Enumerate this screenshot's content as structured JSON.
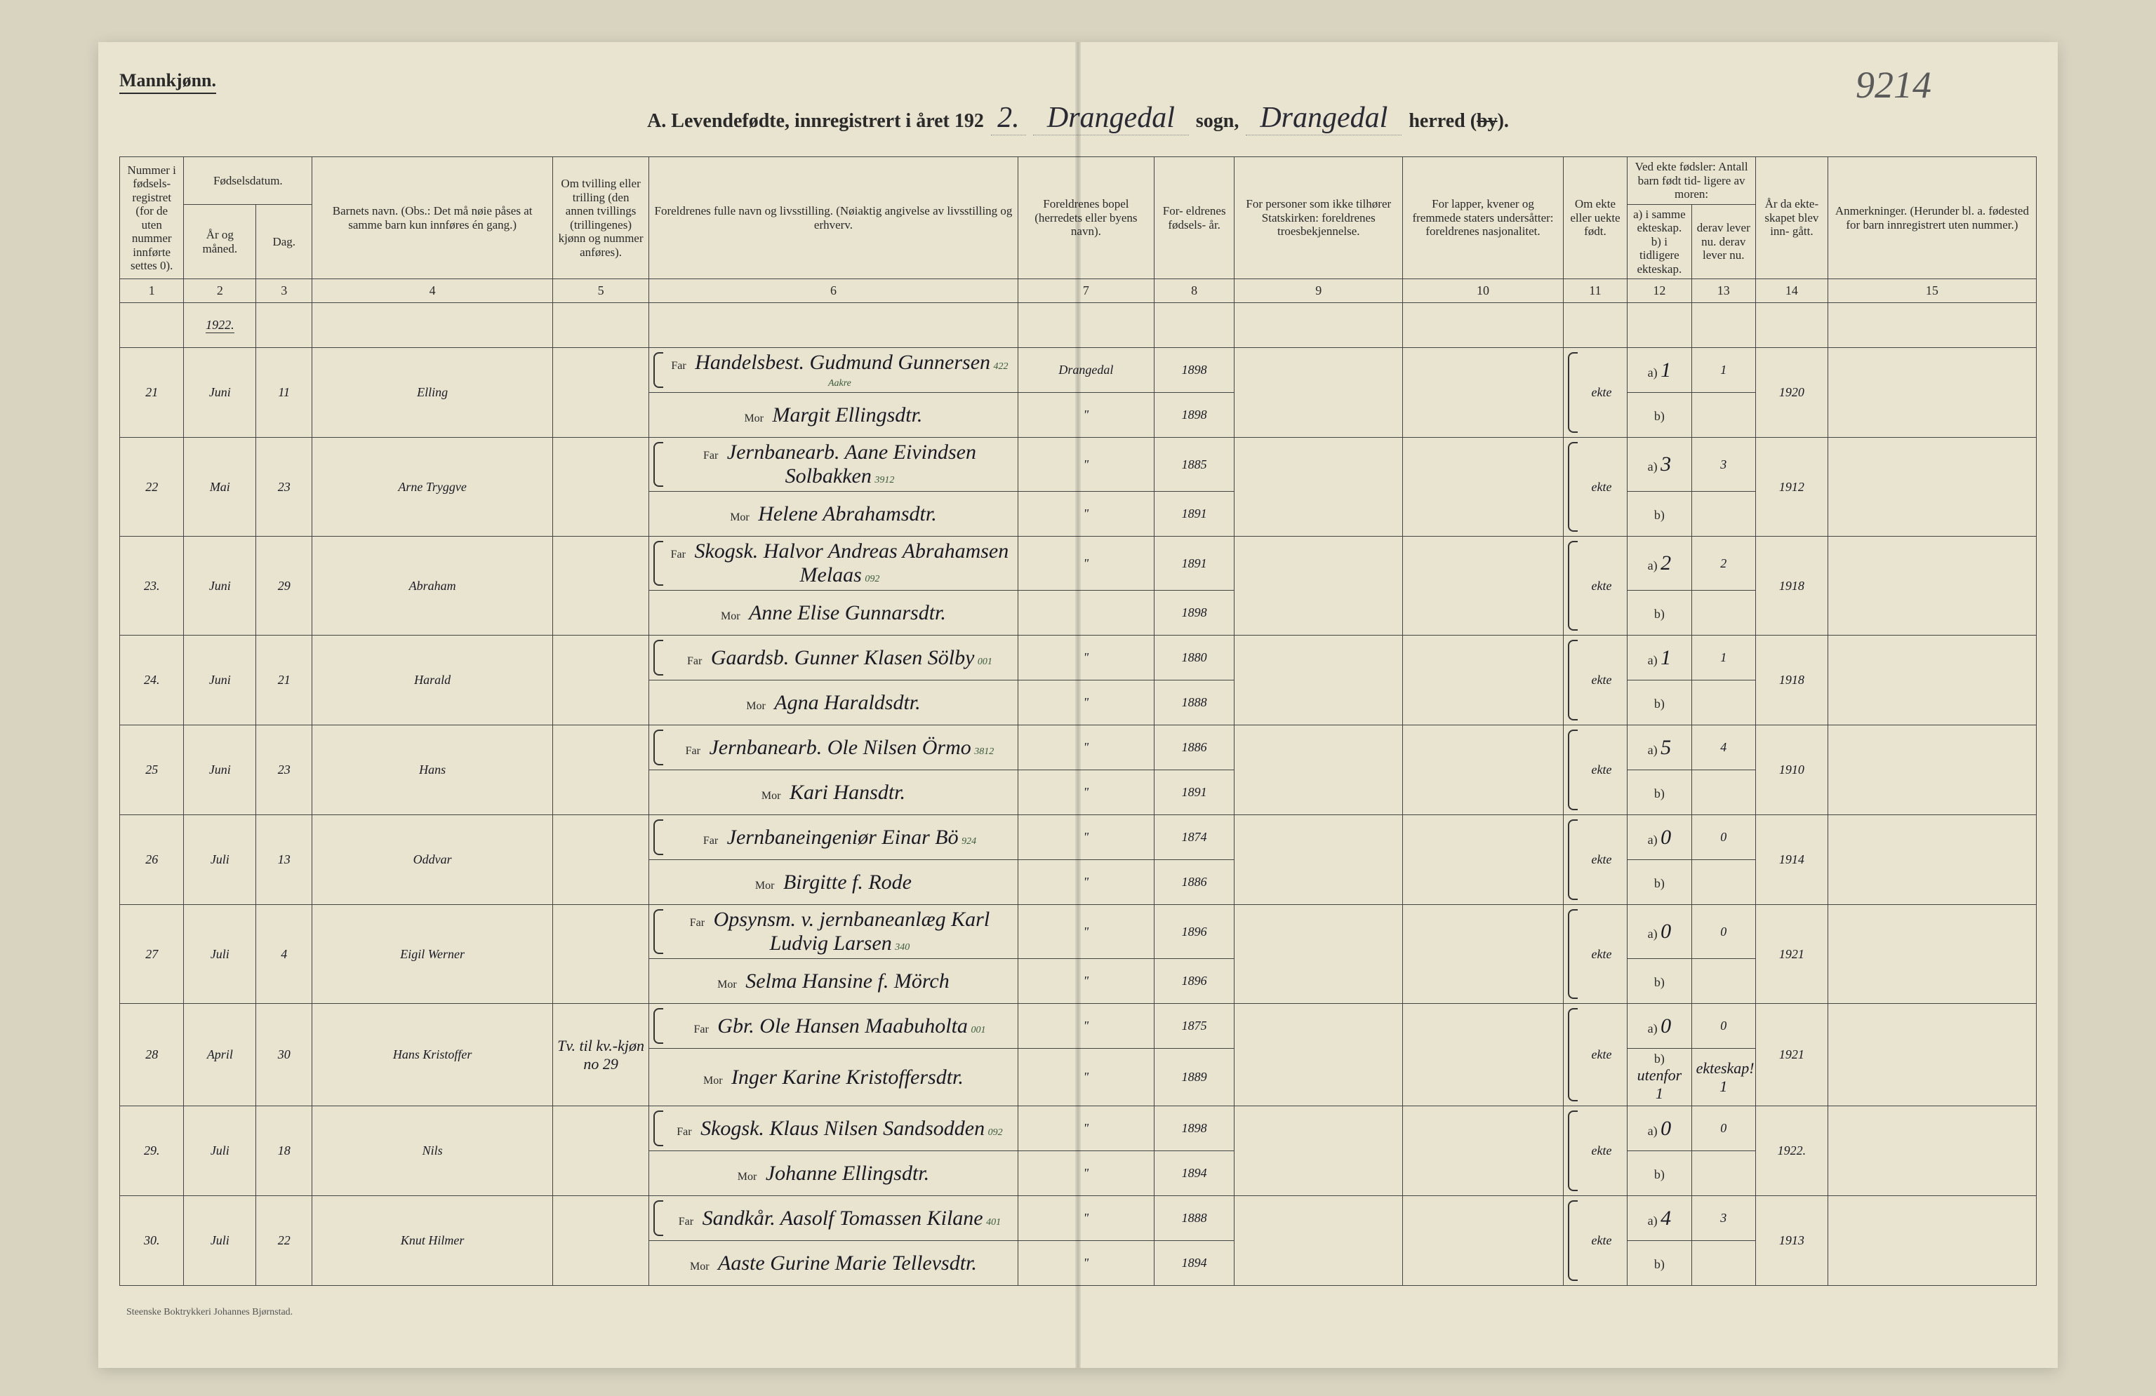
{
  "header": {
    "gender": "Mannkjønn.",
    "page_number_hw": "9214",
    "title_prefix": "A.  Levendefødte, innregistrert i året 192",
    "year_suffix_hw": "2.",
    "sogn_hw": "Drangedal",
    "sogn_label": "sogn,",
    "herred_hw": "Drangedal",
    "herred_label": "herred (",
    "by_struck": "by",
    "herred_close": ")."
  },
  "columns": {
    "c1": "Nummer i fødsels- registret (for de uten nummer innførte settes 0).",
    "c2a": "Fødselsdatum.",
    "c2b": "År og måned.",
    "c3": "Dag.",
    "c4": "Barnets navn.\n(Obs.: Det må nøie påses at samme barn kun innføres én gang.)",
    "c5": "Om tvilling eller trilling (den annen tvillings (trillingenes) kjønn og nummer anføres).",
    "c6": "Foreldrenes fulle navn og livsstilling.\n(Nøiaktig angivelse av livsstilling og erhverv.",
    "c7": "Foreldrenes bopel (herredets eller byens navn).",
    "c8": "For- eldrenes fødsels- år.",
    "c9": "For personer som ikke tilhører Statskirken: foreldrenes troesbekjennelse.",
    "c10": "For lapper, kvener og fremmede staters undersåtter: foreldrenes nasjonalitet.",
    "c11": "Om ekte eller uekte født.",
    "c12": "Ved ekte fødsler: Antall barn født tid- ligere av moren:",
    "c12a": "a) i samme ekteskap.",
    "c12b": "b) i tidligere ekteskap.",
    "c13": "derav lever nu.\nderav lever nu.",
    "c14": "År da ekte- skapet blev inn- gått.",
    "c15": "Anmerkninger.\n(Herunder bl. a. fødested for barn innregistrert uten nummer.)",
    "nums": [
      "1",
      "2",
      "3",
      "4",
      "5",
      "6",
      "7",
      "8",
      "9",
      "10",
      "11",
      "12",
      "13",
      "14",
      "15"
    ]
  },
  "year_label": "1922.",
  "rows": [
    {
      "num": "21",
      "month": "Juni",
      "day": "11",
      "child": "Elling",
      "twin": "",
      "far_note": "422  Aakre",
      "far": "Handelsbest. Gudmund Gunnersen",
      "mor": "Margit Ellingsdtr.",
      "bopel": "Drangedal",
      "bopel2": "\"",
      "fy_far": "1898",
      "fy_mor": "1898",
      "ekte": "ekte",
      "a": "1",
      "b": "",
      "lev_a": "1",
      "lev_b": "",
      "marr": "1920",
      "anm": ""
    },
    {
      "num": "22",
      "month": "Mai",
      "day": "23",
      "child": "Arne Tryggve",
      "twin": "",
      "far_note": "3912",
      "far": "Jernbanearb. Aane Eivindsen Solbakken",
      "mor": "Helene Abrahamsdtr.",
      "bopel": "\"",
      "bopel2": "\"",
      "fy_far": "1885",
      "fy_mor": "1891",
      "ekte": "ekte",
      "a": "3",
      "b": "",
      "lev_a": "3",
      "lev_b": "",
      "marr": "1912",
      "anm": ""
    },
    {
      "num": "23.",
      "month": "Juni",
      "day": "29",
      "child": "Abraham",
      "twin": "",
      "far_note": "092",
      "far": "Skogsk. Halvor Andreas Abrahamsen  Melaas",
      "mor": "Anne Elise Gunnarsdtr.",
      "bopel": "\"",
      "bopel2": "",
      "fy_far": "1891",
      "fy_mor": "1898",
      "ekte": "ekte",
      "a": "2",
      "b": "",
      "lev_a": "2",
      "lev_b": "",
      "marr": "1918",
      "anm": ""
    },
    {
      "num": "24.",
      "month": "Juni",
      "day": "21",
      "child": "Harald",
      "twin": "",
      "far_note": "001",
      "far": "Gaardsb. Gunner Klasen Sölby",
      "mor": "Agna Haraldsdtr.",
      "bopel": "\"",
      "bopel2": "\"",
      "fy_far": "1880",
      "fy_mor": "1888",
      "ekte": "ekte",
      "a": "1",
      "b": "",
      "lev_a": "1",
      "lev_b": "",
      "marr": "1918",
      "anm": ""
    },
    {
      "num": "25",
      "month": "Juni",
      "day": "23",
      "child": "Hans",
      "twin": "",
      "far_note": "3812",
      "far": "Jernbanearb. Ole Nilsen Örmo",
      "mor": "Kari Hansdtr.",
      "bopel": "\"",
      "bopel2": "\"",
      "fy_far": "1886",
      "fy_mor": "1891",
      "ekte": "ekte",
      "a": "5",
      "b": "",
      "lev_a": "4",
      "lev_b": "",
      "marr": "1910",
      "anm": ""
    },
    {
      "num": "26",
      "month": "Juli",
      "day": "13",
      "child": "Oddvar",
      "twin": "",
      "far_note": "924",
      "far": "Jernbaneingeniør Einar Bö",
      "mor": "Birgitte f. Rode",
      "bopel": "\"",
      "bopel2": "\"",
      "fy_far": "1874",
      "fy_mor": "1886",
      "ekte": "ekte",
      "a": "0",
      "b": "",
      "lev_a": "0",
      "lev_b": "",
      "marr": "1914",
      "anm": ""
    },
    {
      "num": "27",
      "month": "Juli",
      "day": "4",
      "child": "Eigil Werner",
      "twin": "",
      "far_note": "340",
      "far": "Opsynsm. v. jernbaneanlæg Karl Ludvig Larsen",
      "mor": "Selma Hansine f. Mörch",
      "bopel": "\"",
      "bopel2": "\"",
      "fy_far": "1896",
      "fy_mor": "1896",
      "ekte": "ekte",
      "a": "0",
      "b": "",
      "lev_a": "0",
      "lev_b": "",
      "marr": "1921",
      "anm": ""
    },
    {
      "num": "28",
      "month": "April",
      "day": "30",
      "child": "Hans Kristoffer",
      "twin": "Tv. til kv.-kjøn no 29",
      "far_note": "001",
      "far": "Gbr. Ole Hansen Maabuholta",
      "mor": "Inger Karine Kristoffersdtr.",
      "bopel": "\"",
      "bopel2": "\"",
      "fy_far": "1875",
      "fy_mor": "1889",
      "ekte": "ekte",
      "a": "0",
      "b": "utenfor 1",
      "lev_a": "0",
      "lev_b": "ekteskap! 1",
      "marr": "1921",
      "anm": ""
    },
    {
      "num": "29.",
      "month": "Juli",
      "day": "18",
      "child": "Nils",
      "twin": "",
      "far_note": "092",
      "far": "Skogsk. Klaus Nilsen Sandsodden",
      "mor": "Johanne Ellingsdtr.",
      "bopel": "\"",
      "bopel2": "\"",
      "fy_far": "1898",
      "fy_mor": "1894",
      "ekte": "ekte",
      "a": "0",
      "b": "",
      "lev_a": "0",
      "lev_b": "",
      "marr": "1922.",
      "anm": ""
    },
    {
      "num": "30.",
      "month": "Juli",
      "day": "22",
      "child": "Knut Hilmer",
      "twin": "",
      "far_note": "401",
      "far": "Sandkår. Aasolf Tomassen Kilane",
      "mor": "Aaste Gurine Marie Tellevsdtr.",
      "bopel": "\"",
      "bopel2": "\"",
      "fy_far": "1888",
      "fy_mor": "1894",
      "ekte": "ekte",
      "a": "4",
      "b": "",
      "lev_a": "3",
      "lev_b": "",
      "marr": "1913",
      "anm": ""
    }
  ],
  "footer": "Steenske Boktrykkeri Johannes Bjørnstad.",
  "style": {
    "paper_bg": "#e8e4d0",
    "outer_bg": "#d8d4c0",
    "ink": "#1a1a25",
    "print": "#2a2a2a",
    "pencil": "#5a5a5a",
    "border": "#444444",
    "font_print": "Georgia, 'Times New Roman', serif",
    "font_hw": "'Brush Script MT', cursive",
    "header_fontsize": 18,
    "hw_fontsize": 36,
    "title_fontsize": 28
  }
}
